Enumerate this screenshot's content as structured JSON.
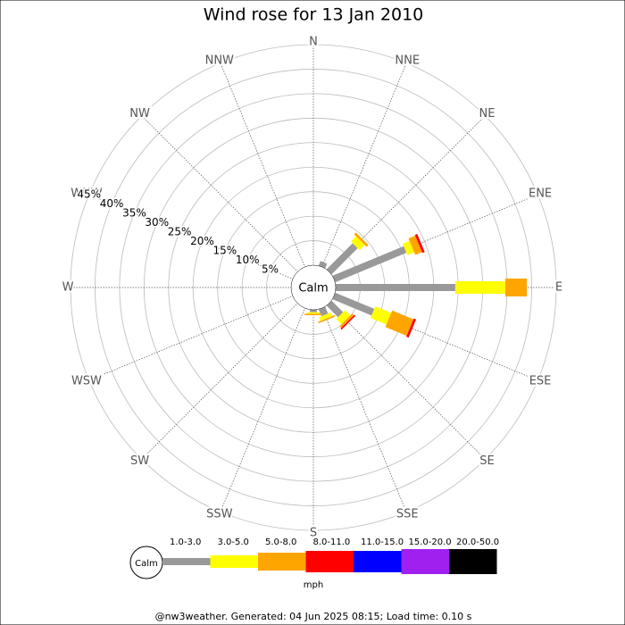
{
  "chart_data": {
    "type": "windrose",
    "title": "Wind rose for 13 Jan 2010",
    "categories": [
      "N",
      "NNE",
      "NE",
      "ENE",
      "E",
      "ESE",
      "SE",
      "SSE",
      "S",
      "SSW",
      "SW",
      "WSW",
      "W",
      "WNW",
      "NW",
      "NNW"
    ],
    "calm_label": "Calm",
    "unit_label": "mph",
    "footer": "@nw3weather. Generated: 04 Jun 2025 08:15; Load time: 0.10 s",
    "rlim": [
      0,
      45
    ],
    "rticks": [
      {
        "value": 5,
        "label": "5%"
      },
      {
        "value": 10,
        "label": "10%"
      },
      {
        "value": 15,
        "label": "15%"
      },
      {
        "value": 20,
        "label": "20%"
      },
      {
        "value": 25,
        "label": "25%"
      },
      {
        "value": 30,
        "label": "30%"
      },
      {
        "value": 35,
        "label": "35%"
      },
      {
        "value": 40,
        "label": "40%"
      },
      {
        "value": 45,
        "label": "45%"
      }
    ],
    "series": [
      {
        "name": "1.0-3.0",
        "color": "#999999",
        "values": [
          0,
          1,
          7.5,
          15.7,
          24.4,
          8.6,
          3.3,
          1.5,
          0.5,
          0,
          0,
          0,
          0,
          0,
          0,
          0
        ]
      },
      {
        "name": "3.0-5.0",
        "color": "#ffff00",
        "values": [
          0,
          0,
          1.5,
          1.5,
          10.2,
          3.5,
          1.5,
          0.8,
          0.3,
          0,
          0,
          0,
          0,
          0,
          0,
          0
        ]
      },
      {
        "name": "5.0-8.0",
        "color": "#ffa500",
        "values": [
          0,
          0,
          0.5,
          1.5,
          4.4,
          4.7,
          0.5,
          0.3,
          0.3,
          0,
          0,
          0,
          0,
          0,
          0,
          0
        ]
      },
      {
        "name": "8.0-11.0",
        "color": "#ff0000",
        "values": [
          0,
          0,
          0,
          0.5,
          0,
          0.5,
          0.3,
          0,
          0,
          0,
          0,
          0,
          0,
          0,
          0,
          0
        ]
      },
      {
        "name": "11.0-15.0",
        "color": "#0000ff",
        "values": [
          0,
          0,
          0,
          0,
          0,
          0,
          0,
          0,
          0,
          0,
          0,
          0,
          0,
          0,
          0,
          0
        ]
      },
      {
        "name": "15.0-20.0",
        "color": "#a020f0",
        "values": [
          0,
          0,
          0,
          0,
          0,
          0,
          0,
          0,
          0,
          0,
          0,
          0,
          0,
          0,
          0,
          0
        ]
      },
      {
        "name": "20.0-50.0",
        "color": "#000000",
        "values": [
          0,
          0,
          0,
          0,
          0,
          0,
          0,
          0,
          0,
          0,
          0,
          0,
          0,
          0,
          0,
          0
        ]
      }
    ]
  }
}
